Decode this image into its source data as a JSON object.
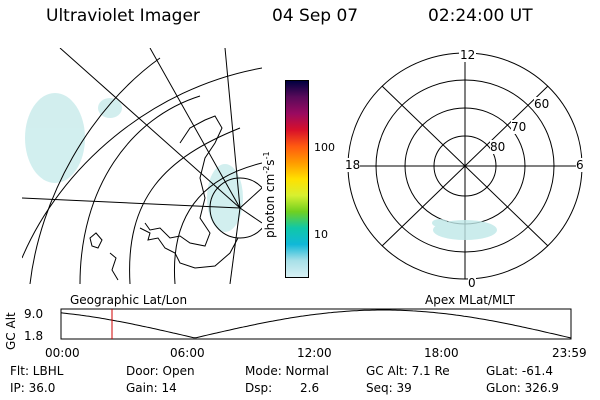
{
  "header": {
    "instrument": "Ultraviolet Imager",
    "date": "04 Sep 07",
    "time": "02:24:00 UT"
  },
  "colorbar": {
    "unit_label": "photon cm",
    "unit_exp1": "-2",
    "unit_mid": "s",
    "unit_exp2": "-1",
    "tick_100": "100",
    "tick_10": "10",
    "colors": [
      "#000040",
      "#5a0a5a",
      "#9a0a60",
      "#d8102a",
      "#ff5a10",
      "#ff9a00",
      "#ffe000",
      "#d8f030",
      "#70d020",
      "#10c8a8",
      "#10b8d8",
      "#a8e0e8",
      "#d8f0f4"
    ]
  },
  "geo_panel": {
    "label": "Geographic Lat/Lon"
  },
  "polar_panel": {
    "label": "Apex MLat/MLT",
    "mlt_12": "12",
    "mlt_18": "18",
    "mlt_6": "6",
    "mlt_0": "0",
    "lat_60": "60",
    "lat_70": "70",
    "lat_80": "80"
  },
  "orbit_plot": {
    "ylabel": "GC Alt",
    "ytick_top": "9.0",
    "ytick_bottom": "1.8",
    "xticks": [
      "00:00",
      "06:00",
      "12:00",
      "18:00",
      "23:59"
    ],
    "current_time_marker_hours": 2.4,
    "marker_color": "#d00000"
  },
  "info": {
    "flt": "Flt: LBHL",
    "ip": "IP: 36.0",
    "door": "Door: Open",
    "gain": "Gain: 14",
    "mode": "Mode: Normal",
    "dsp": "Dsp:",
    "dsp_val": "2.6",
    "gc_alt": "GC Alt: 7.1 Re",
    "seq": "Seq: 39",
    "glat": "GLat: -61.4",
    "glon": "GLon: 326.9"
  }
}
